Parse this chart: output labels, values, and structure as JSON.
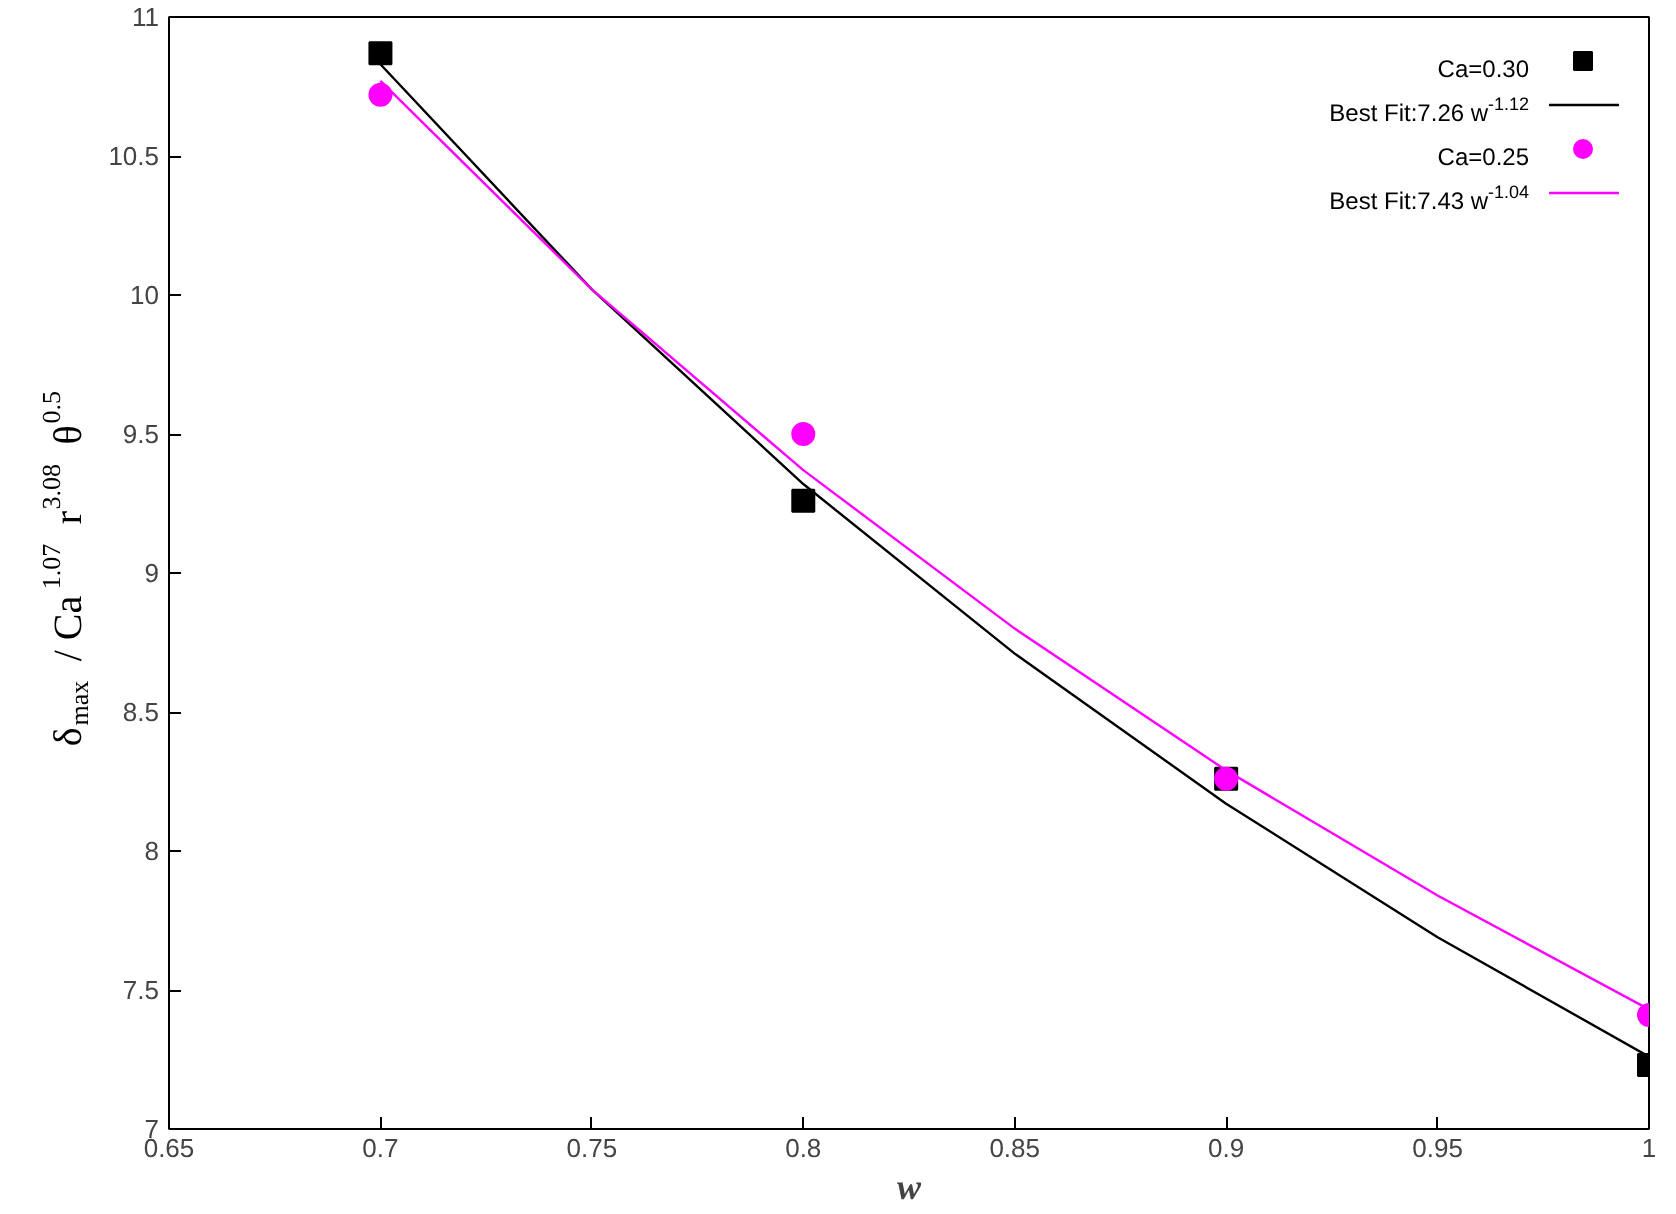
{
  "chart_data": {
    "type": "scatter",
    "xlabel": "w",
    "ylabel": "δ$_{max}$ / Ca$^{1.07}$ r$^{3.08}$ θ$^{0.5}$",
    "xlim": [
      0.65,
      1
    ],
    "ylim": [
      7,
      11
    ],
    "xticks": [
      0.65,
      0.7,
      0.75,
      0.8,
      0.85,
      0.9,
      0.95,
      1
    ],
    "yticks": [
      7,
      7.5,
      8,
      8.5,
      9,
      9.5,
      10,
      10.5,
      11
    ],
    "grid": false,
    "legend": "top right",
    "series": [
      {
        "name": "Ca=0.30",
        "type": "scatter",
        "marker": "square",
        "color": "#000000",
        "x": [
          0.7,
          0.8,
          0.9,
          1.0
        ],
        "values": [
          10.87,
          9.26,
          8.26,
          7.23
        ]
      },
      {
        "name": "Best Fit:7.26 w$^{-1.12}$",
        "type": "line",
        "line_style": "solid",
        "color": "#000000",
        "x": [
          0.7,
          0.75,
          0.8,
          0.85,
          0.9,
          0.95,
          1.0
        ],
        "values": [
          10.83,
          10.02,
          9.32,
          8.71,
          8.17,
          7.69,
          7.26
        ]
      },
      {
        "name": "Ca=0.25",
        "type": "scatter",
        "marker": "circle",
        "color": "#ff00ff",
        "x": [
          0.7,
          0.8,
          0.9,
          1.0
        ],
        "values": [
          10.72,
          9.5,
          8.26,
          7.41
        ]
      },
      {
        "name": "Best Fit:7.43 w$^{-1.04}$",
        "type": "line",
        "line_style": "solid",
        "color": "#ff00ff",
        "x": [
          0.7,
          0.75,
          0.8,
          0.85,
          0.9,
          0.95,
          1.0
        ],
        "values": [
          10.77,
          10.02,
          9.37,
          8.8,
          8.29,
          7.84,
          7.43
        ]
      }
    ]
  }
}
